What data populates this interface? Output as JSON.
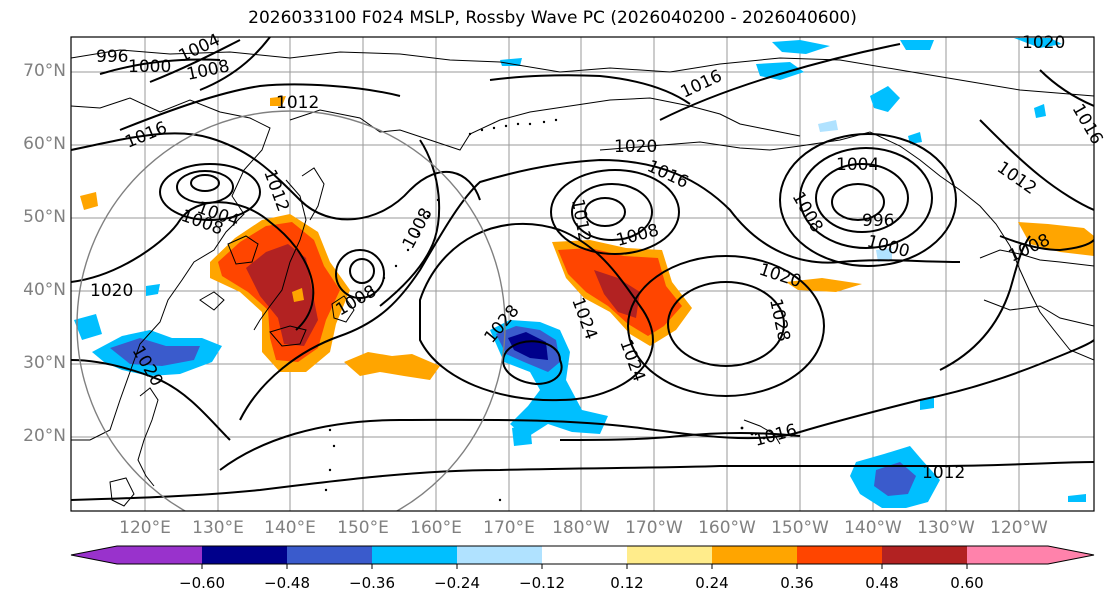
{
  "title": "2026033100 F024 MSLP, Rossby Wave PC (2026040200 - 2026040600)",
  "map": {
    "lat_labels": [
      "70°N",
      "60°N",
      "50°N",
      "40°N",
      "30°N",
      "20°N"
    ],
    "lon_labels": [
      "120°E",
      "130°E",
      "140°E",
      "150°E",
      "160°E",
      "170°E",
      "180°W",
      "170°W",
      "160°W",
      "150°W",
      "140°W",
      "130°W",
      "120°W"
    ],
    "isobar_labels": [
      {
        "text": "996"
      },
      {
        "text": "1000"
      },
      {
        "text": "1004"
      },
      {
        "text": "1008"
      },
      {
        "text": "1012"
      },
      {
        "text": "1016"
      },
      {
        "text": "1004"
      },
      {
        "text": "1008"
      },
      {
        "text": "1012"
      },
      {
        "text": "1008"
      },
      {
        "text": "1020"
      },
      {
        "text": "1016"
      },
      {
        "text": "1008"
      },
      {
        "text": "1012"
      },
      {
        "text": "1020"
      },
      {
        "text": "1016"
      },
      {
        "text": "1008"
      },
      {
        "text": "1004"
      },
      {
        "text": "996"
      },
      {
        "text": "1000"
      },
      {
        "text": "1012"
      },
      {
        "text": "1008"
      },
      {
        "text": "1020"
      },
      {
        "text": "1028"
      },
      {
        "text": "1024"
      },
      {
        "text": "1024"
      },
      {
        "text": "1028"
      },
      {
        "text": "1016"
      },
      {
        "text": "1012"
      },
      {
        "text": "1020"
      },
      {
        "text": "1016"
      },
      {
        "text": "1008"
      },
      {
        "text": "1020"
      }
    ]
  },
  "colorbar": {
    "colors": [
      "#9932CC",
      "#00008B",
      "#3A5BCC",
      "#00BFFF",
      "#B0E2FF",
      "#FFFFFF",
      "#FFEC8B",
      "#FFA500",
      "#FF4500",
      "#B22222",
      "#FF82AB"
    ],
    "labels": [
      "−0.60",
      "−0.48",
      "−0.36",
      "−0.24",
      "−0.12",
      "0.12",
      "0.24",
      "0.36",
      "0.48",
      "0.60"
    ]
  }
}
